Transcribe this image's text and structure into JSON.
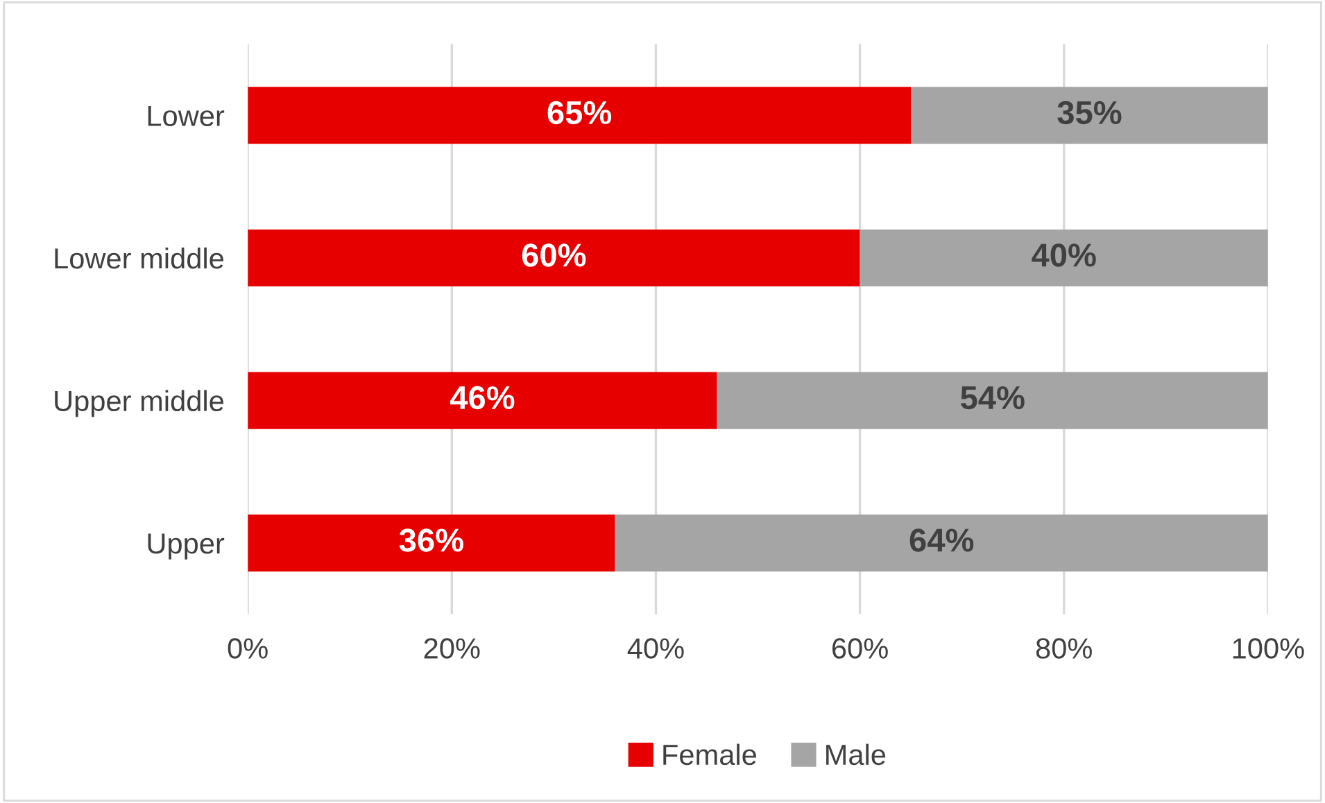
{
  "chart_data": {
    "type": "bar",
    "orientation": "horizontal",
    "stacked": true,
    "categories": [
      "Lower",
      "Lower middle",
      "Upper middle",
      "Upper"
    ],
    "series": [
      {
        "name": "Female",
        "color": "#e60000",
        "values": [
          65,
          60,
          46,
          36
        ],
        "value_labels": [
          "65%",
          "60%",
          "46%",
          "36%"
        ]
      },
      {
        "name": "Male",
        "color": "#a5a5a5",
        "values": [
          35,
          40,
          54,
          64
        ],
        "value_labels": [
          "35%",
          "40%",
          "54%",
          "64%"
        ]
      }
    ],
    "xlim": [
      0,
      100
    ],
    "xticks": [
      {
        "value": 0,
        "label": "0%"
      },
      {
        "value": 20,
        "label": "20%"
      },
      {
        "value": 40,
        "label": "40%"
      },
      {
        "value": 60,
        "label": "60%"
      },
      {
        "value": 80,
        "label": "80%"
      },
      {
        "value": 100,
        "label": "100%"
      }
    ],
    "grid": "x",
    "legend": "bottom"
  }
}
